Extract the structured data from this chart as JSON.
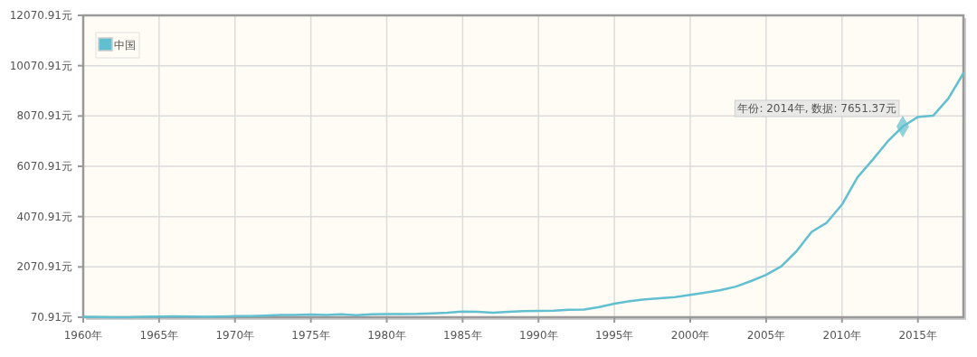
{
  "chart_data": {
    "type": "line",
    "x": [
      1960,
      1961,
      1962,
      1963,
      1964,
      1965,
      1966,
      1967,
      1968,
      1969,
      1970,
      1971,
      1972,
      1973,
      1974,
      1975,
      1976,
      1977,
      1978,
      1979,
      1980,
      1981,
      1982,
      1983,
      1984,
      1985,
      1986,
      1987,
      1988,
      1989,
      1990,
      1991,
      1992,
      1993,
      1994,
      1995,
      1996,
      1997,
      1998,
      1999,
      2000,
      2001,
      2002,
      2003,
      2004,
      2005,
      2006,
      2007,
      2008,
      2009,
      2010,
      2011,
      2012,
      2013,
      2014,
      2015,
      2016,
      2017,
      2018
    ],
    "series": [
      {
        "name": "中国",
        "color": "#62bfcf",
        "values": [
          90,
          76,
          71,
          74,
          86,
          99,
          104,
          97,
          92,
          100,
          113,
          119,
          132,
          157,
          160,
          178,
          165,
          185,
          156,
          184,
          195,
          197,
          203,
          225,
          251,
          295,
          282,
          252,
          284,
          311,
          318,
          333,
          367,
          377,
          474,
          610,
          709,
          782,
          829,
          873,
          959,
          1053,
          1149,
          1289,
          1509,
          1753,
          2099,
          2694,
          3468,
          3832,
          4551,
          5618,
          6317,
          7051,
          7651.37,
          8033,
          8079,
          8759,
          9771
        ]
      }
    ],
    "xlim": [
      1960,
      2018
    ],
    "ylim": [
      70.91,
      12070.91
    ],
    "xticks": [
      {
        "value": 1960,
        "label": "1960年"
      },
      {
        "value": 1965,
        "label": "1965年"
      },
      {
        "value": 1970,
        "label": "1970年"
      },
      {
        "value": 1975,
        "label": "1975年"
      },
      {
        "value": 1980,
        "label": "1980年"
      },
      {
        "value": 1985,
        "label": "1985年"
      },
      {
        "value": 1990,
        "label": "1990年"
      },
      {
        "value": 1995,
        "label": "1995年"
      },
      {
        "value": 2000,
        "label": "2000年"
      },
      {
        "value": 2005,
        "label": "2005年"
      },
      {
        "value": 2010,
        "label": "2010年"
      },
      {
        "value": 2015,
        "label": "2015年"
      }
    ],
    "yticks": [
      {
        "value": 70.91,
        "label": "70.91元"
      },
      {
        "value": 2070.91,
        "label": "2070.91元"
      },
      {
        "value": 4070.91,
        "label": "4070.91元"
      },
      {
        "value": 6070.91,
        "label": "6070.91元"
      },
      {
        "value": 8070.91,
        "label": "8070.91元"
      },
      {
        "value": 10070.91,
        "label": "10070.91元"
      },
      {
        "value": 12070.91,
        "label": "12070.91元"
      }
    ],
    "grid": true,
    "legend": "top left",
    "annotations": [
      {
        "text": "年份: 2014年, 数据: 7651.37元",
        "x": 2014,
        "y": 7651.37
      }
    ]
  }
}
